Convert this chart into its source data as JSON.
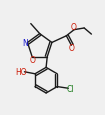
{
  "bg_color": "#f0f0f0",
  "line_color": "#1a1a1a",
  "atom_colors": {
    "N": "#1515cc",
    "O": "#cc1500",
    "C": "#1a1a1a",
    "Cl": "#1a7a1a",
    "HO": "#cc1500"
  },
  "lw": 1.0,
  "fs": 5.5
}
